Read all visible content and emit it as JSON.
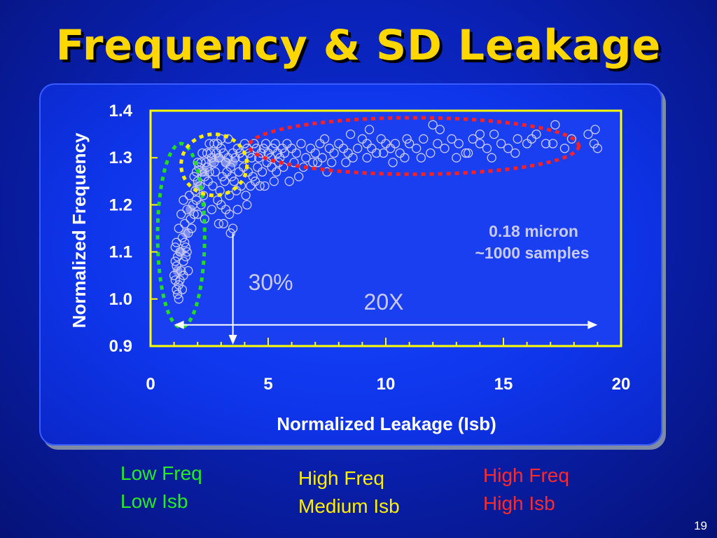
{
  "slide": {
    "title": "Frequency & SD Leakage",
    "page_number": "19"
  },
  "chart_data": {
    "type": "scatter",
    "xlabel": "Normalized Leakage (Isb)",
    "ylabel": "Normalized Frequency",
    "xlim": [
      0,
      20
    ],
    "ylim": [
      0.9,
      1.4
    ],
    "xticks": [
      "0",
      "5",
      "10",
      "15",
      "20"
    ],
    "yticks": [
      "1.4",
      "1.3",
      "1.2",
      "1.1",
      "1.0",
      "0.9"
    ],
    "annotation_box": [
      "0.18 micron",
      "~1000 samples"
    ],
    "arrows": [
      {
        "label": "30%",
        "x": 3.5,
        "from_y": 0.9,
        "to_y": 1.14
      },
      {
        "label": "20X",
        "y": 0.945,
        "from_x": 1.0,
        "to_x": 19.0
      }
    ],
    "regions": [
      {
        "color": "#22dd22",
        "cx": 1.3,
        "cy": 1.135,
        "rx": 1.0,
        "ry": 0.195
      },
      {
        "color": "#ffee00",
        "cx": 2.7,
        "cy": 1.285,
        "rx": 1.4,
        "ry": 0.065
      },
      {
        "color": "#ff2020",
        "cx": 11.2,
        "cy": 1.325,
        "rx": 7.0,
        "ry": 0.06
      }
    ],
    "marker_color": "#c9cbf2",
    "plot_bg": "#1a3ff0",
    "axis_color": "#ffff00",
    "series": [
      {
        "values_scattered_summary": "approx. 1000 samples",
        "points": [
          [
            1.0,
            1.05
          ],
          [
            1.05,
            1.04
          ],
          [
            1.1,
            1.07
          ],
          [
            1.2,
            1.03
          ],
          [
            1.15,
            1.09
          ],
          [
            1.3,
            1.06
          ],
          [
            1.25,
            1.1
          ],
          [
            1.4,
            1.08
          ],
          [
            1.1,
            1.12
          ],
          [
            1.35,
            1.13
          ],
          [
            1.5,
            1.11
          ],
          [
            1.2,
            1.15
          ],
          [
            1.45,
            1.16
          ],
          [
            1.6,
            1.14
          ],
          [
            1.3,
            1.18
          ],
          [
            1.55,
            1.19
          ],
          [
            1.7,
            1.17
          ],
          [
            1.4,
            1.21
          ],
          [
            1.8,
            1.2
          ],
          [
            1.65,
            1.22
          ],
          [
            1.2,
            1.0
          ],
          [
            1.1,
            1.02
          ],
          [
            1.05,
            1.11
          ],
          [
            1.6,
            1.06
          ],
          [
            1.5,
            1.09
          ],
          [
            1.9,
            1.23
          ],
          [
            2.0,
            1.25
          ],
          [
            1.85,
            1.26
          ],
          [
            2.1,
            1.24
          ],
          [
            2.2,
            1.27
          ],
          [
            2.3,
            1.26
          ],
          [
            2.05,
            1.28
          ],
          [
            2.4,
            1.28
          ],
          [
            2.5,
            1.27
          ],
          [
            2.35,
            1.29
          ],
          [
            2.6,
            1.3
          ],
          [
            2.7,
            1.29
          ],
          [
            2.8,
            1.31
          ],
          [
            2.55,
            1.31
          ],
          [
            2.9,
            1.3
          ],
          [
            3.0,
            1.32
          ],
          [
            3.1,
            1.31
          ],
          [
            2.75,
            1.27
          ],
          [
            2.45,
            1.25
          ],
          [
            2.65,
            1.24
          ],
          [
            2.25,
            1.22
          ],
          [
            2.15,
            1.2
          ],
          [
            3.2,
            1.29
          ],
          [
            3.3,
            1.3
          ],
          [
            3.4,
            1.28
          ],
          [
            3.5,
            1.31
          ],
          [
            3.6,
            1.3
          ],
          [
            3.25,
            1.27
          ],
          [
            3.05,
            1.26
          ],
          [
            2.95,
            1.23
          ],
          [
            3.15,
            1.25
          ],
          [
            2.85,
            1.21
          ],
          [
            3.45,
            1.26
          ],
          [
            3.7,
            1.32
          ],
          [
            3.8,
            1.31
          ],
          [
            3.9,
            1.3
          ],
          [
            4.0,
            1.33
          ],
          [
            4.1,
            1.32
          ],
          [
            4.2,
            1.31
          ],
          [
            4.3,
            1.3
          ],
          [
            4.4,
            1.33
          ],
          [
            4.5,
            1.32
          ],
          [
            4.6,
            1.3
          ],
          [
            4.7,
            1.31
          ],
          [
            4.8,
            1.32
          ],
          [
            4.9,
            1.33
          ],
          [
            5.0,
            1.31
          ],
          [
            5.1,
            1.3
          ],
          [
            5.2,
            1.32
          ],
          [
            5.3,
            1.33
          ],
          [
            5.4,
            1.31
          ],
          [
            5.5,
            1.3
          ],
          [
            5.6,
            1.32
          ],
          [
            5.7,
            1.31
          ],
          [
            5.8,
            1.33
          ],
          [
            3.55,
            1.25
          ],
          [
            3.75,
            1.27
          ],
          [
            3.95,
            1.28
          ],
          [
            4.15,
            1.27
          ],
          [
            4.35,
            1.26
          ],
          [
            4.55,
            1.28
          ],
          [
            4.75,
            1.27
          ],
          [
            4.95,
            1.29
          ],
          [
            5.15,
            1.28
          ],
          [
            5.35,
            1.27
          ],
          [
            3.35,
            1.22
          ],
          [
            3.65,
            1.23
          ],
          [
            3.85,
            1.24
          ],
          [
            4.05,
            1.22
          ],
          [
            4.25,
            1.24
          ],
          [
            4.45,
            1.25
          ],
          [
            4.65,
            1.24
          ],
          [
            5.25,
            1.25
          ],
          [
            5.45,
            1.29
          ],
          [
            5.65,
            1.28
          ],
          [
            2.0,
            1.18
          ],
          [
            2.3,
            1.17
          ],
          [
            2.6,
            1.19
          ],
          [
            2.9,
            1.16
          ],
          [
            3.2,
            1.19
          ],
          [
            3.5,
            1.15
          ],
          [
            3.0,
            1.2
          ],
          [
            3.35,
            1.18
          ],
          [
            4.1,
            1.2
          ],
          [
            3.7,
            1.19
          ],
          [
            6.0,
            1.32
          ],
          [
            6.2,
            1.31
          ],
          [
            6.4,
            1.33
          ],
          [
            6.6,
            1.3
          ],
          [
            6.8,
            1.32
          ],
          [
            7.0,
            1.31
          ],
          [
            7.2,
            1.33
          ],
          [
            7.4,
            1.34
          ],
          [
            7.6,
            1.32
          ],
          [
            7.8,
            1.31
          ],
          [
            6.1,
            1.29
          ],
          [
            6.5,
            1.28
          ],
          [
            6.9,
            1.29
          ],
          [
            7.3,
            1.3
          ],
          [
            7.7,
            1.29
          ],
          [
            8.0,
            1.33
          ],
          [
            8.2,
            1.32
          ],
          [
            8.4,
            1.31
          ],
          [
            8.6,
            1.3
          ],
          [
            8.8,
            1.32
          ],
          [
            9.0,
            1.34
          ],
          [
            9.2,
            1.33
          ],
          [
            9.4,
            1.32
          ],
          [
            9.6,
            1.31
          ],
          [
            9.8,
            1.34
          ],
          [
            10.0,
            1.33
          ],
          [
            10.2,
            1.32
          ],
          [
            10.4,
            1.33
          ],
          [
            10.6,
            1.31
          ],
          [
            10.8,
            1.3
          ],
          [
            11.0,
            1.33
          ],
          [
            11.3,
            1.32
          ],
          [
            11.6,
            1.34
          ],
          [
            11.9,
            1.31
          ],
          [
            12.2,
            1.33
          ],
          [
            12.5,
            1.32
          ],
          [
            12.8,
            1.34
          ],
          [
            13.1,
            1.33
          ],
          [
            13.4,
            1.31
          ],
          [
            13.7,
            1.34
          ],
          [
            14.0,
            1.33
          ],
          [
            14.3,
            1.32
          ],
          [
            14.6,
            1.35
          ],
          [
            14.9,
            1.33
          ],
          [
            15.2,
            1.32
          ],
          [
            15.6,
            1.34
          ],
          [
            16.0,
            1.33
          ],
          [
            16.4,
            1.35
          ],
          [
            16.8,
            1.33
          ],
          [
            17.2,
            1.37
          ],
          [
            17.6,
            1.32
          ],
          [
            17.9,
            1.34
          ],
          [
            18.6,
            1.35
          ],
          [
            18.9,
            1.36
          ],
          [
            18.85,
            1.33
          ],
          [
            19.0,
            1.32
          ],
          [
            8.5,
            1.35
          ],
          [
            9.3,
            1.36
          ],
          [
            12.0,
            1.37
          ],
          [
            12.3,
            1.36
          ],
          [
            10.3,
            1.29
          ],
          [
            9.2,
            1.3
          ],
          [
            8.3,
            1.29
          ],
          [
            7.5,
            1.27
          ],
          [
            6.3,
            1.26
          ],
          [
            5.9,
            1.25
          ],
          [
            4.85,
            1.24
          ],
          [
            3.1,
            1.16
          ],
          [
            3.4,
            1.14
          ],
          [
            13.5,
            1.31
          ],
          [
            14.5,
            1.3
          ],
          [
            11.5,
            1.3
          ],
          [
            15.5,
            1.31
          ],
          [
            13.0,
            1.3
          ],
          [
            16.2,
            1.34
          ],
          [
            17.1,
            1.33
          ],
          [
            14.0,
            1.35
          ],
          [
            10.9,
            1.34
          ],
          [
            9.9,
            1.31
          ],
          [
            7.1,
            1.29
          ],
          [
            1.15,
            1.01
          ],
          [
            1.25,
            1.04
          ],
          [
            1.35,
            1.02
          ],
          [
            1.05,
            1.08
          ],
          [
            1.4,
            1.05
          ],
          [
            1.55,
            1.1
          ],
          [
            1.45,
            1.12
          ],
          [
            1.75,
            1.15
          ],
          [
            1.85,
            1.18
          ],
          [
            1.95,
            1.21
          ],
          [
            2.15,
            1.29
          ],
          [
            2.4,
            1.31
          ],
          [
            2.7,
            1.33
          ],
          [
            3.0,
            1.34
          ],
          [
            3.3,
            1.34
          ],
          [
            2.5,
            1.33
          ],
          [
            2.2,
            1.31
          ],
          [
            2.0,
            1.29
          ],
          [
            1.95,
            1.27
          ],
          [
            2.85,
            1.33
          ]
        ]
      }
    ]
  },
  "legend": [
    {
      "lines": [
        "Low Freq",
        "Low Isb"
      ],
      "color": "#22ee22"
    },
    {
      "lines": [
        "High Freq",
        "Medium Isb"
      ],
      "color": "#ffee00"
    },
    {
      "lines": [
        "High Freq",
        "High Isb"
      ],
      "color": "#ff2a2a"
    }
  ]
}
